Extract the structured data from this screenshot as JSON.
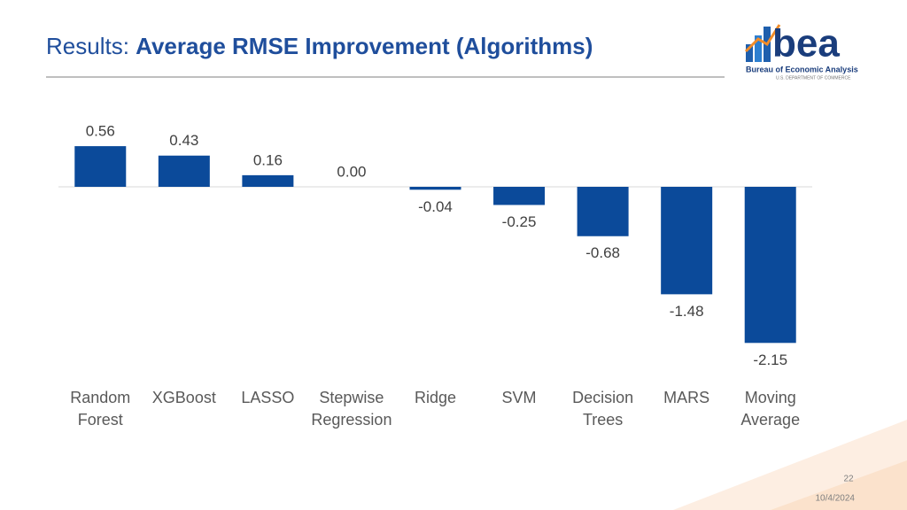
{
  "header": {
    "title_prefix": "Results:",
    "title_main": "Average RMSE Improvement (Algorithms)"
  },
  "logo": {
    "name": "bea",
    "line1": "Bureau of Economic Analysis",
    "line2": "U.S. DEPARTMENT OF COMMERCE"
  },
  "chart_data": {
    "type": "bar",
    "categories": [
      "Random Forest",
      "XGBoost",
      "LASSO",
      "Stepwise Regression",
      "Ridge",
      "SVM",
      "Decision Trees",
      "MARS",
      "Moving Average"
    ],
    "values": [
      0.56,
      0.43,
      0.16,
      0,
      -0.04,
      -0.25,
      -0.68,
      -1.48,
      -2.15
    ],
    "value_labels": [
      "0.56",
      "0.43",
      "0.16",
      "0.00",
      "-0.04",
      "-0.25",
      "-0.68",
      "-1.48",
      "-2.15"
    ],
    "color": "#0b4a9a"
  },
  "footer": {
    "page": "22",
    "date": "10/4/2024"
  }
}
